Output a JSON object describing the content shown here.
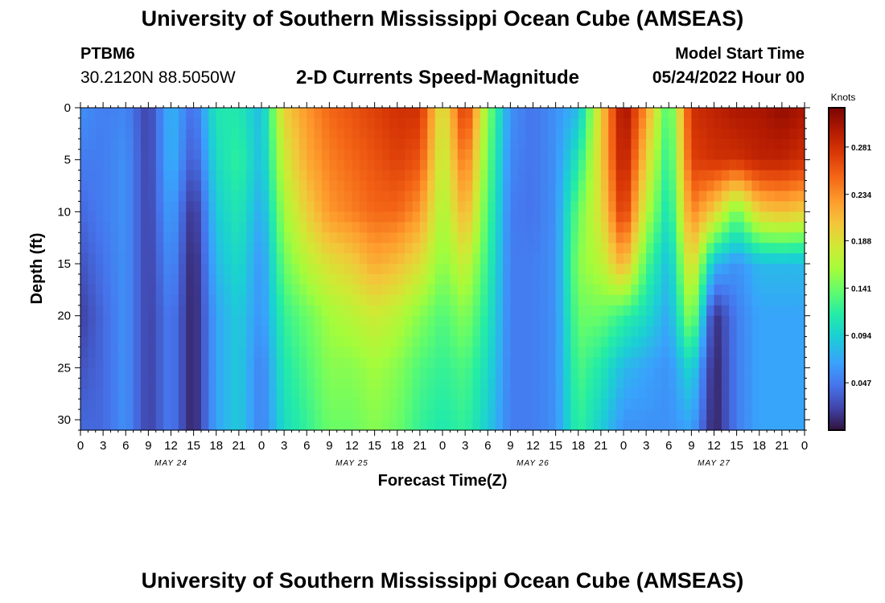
{
  "page": {
    "title": "University of Southern Mississippi Ocean Cube (AMSEAS)",
    "title_repeat": "University of Southern Mississippi Ocean Cube (AMSEAS)",
    "station": "PTBM6",
    "coordinates": "30.2120N  88.5050W",
    "subtitle": "2-D Currents Speed-Magnitude",
    "model_start_label": "Model Start Time",
    "model_start_value": "05/24/2022 Hour 00"
  },
  "chart_data": {
    "type": "heatmap",
    "title": "2-D Currents Speed-Magnitude",
    "xlabel": "Forecast Time(Z)",
    "ylabel": "Depth (ft)",
    "x_range_hours": [
      0,
      96
    ],
    "y_range_ft": [
      0,
      31
    ],
    "x_tick_labels": [
      "0",
      "3",
      "6",
      "9",
      "12",
      "15",
      "18",
      "21",
      "0",
      "3",
      "6",
      "9",
      "12",
      "15",
      "18",
      "21",
      "0",
      "3",
      "6",
      "9",
      "12",
      "15",
      "18",
      "21",
      "0",
      "3",
      "6",
      "9",
      "12",
      "15",
      "18",
      "21",
      "0"
    ],
    "y_tick_labels": [
      "0",
      "5",
      "10",
      "15",
      "20",
      "25",
      "30"
    ],
    "y_ticks": [
      0,
      5,
      10,
      15,
      20,
      25,
      30
    ],
    "day_labels": [
      {
        "label": "MAY 24",
        "hour": 12
      },
      {
        "label": "MAY 25",
        "hour": 36
      },
      {
        "label": "MAY 26",
        "hour": 60
      },
      {
        "label": "MAY 27",
        "hour": 84
      }
    ],
    "colorbar": {
      "units": "Knots",
      "min": 0.0,
      "max": 0.32,
      "tick_values": [
        0.047,
        0.094,
        0.141,
        0.188,
        0.234,
        0.281
      ],
      "tick_labels": [
        "0.047",
        "0.094",
        "0.141",
        "0.188",
        "0.234",
        "0.281"
      ]
    },
    "depths_ft": [
      0,
      5,
      10,
      15,
      20,
      25,
      31
    ],
    "hours": [
      0,
      3,
      6,
      9,
      12,
      15,
      18,
      21,
      24,
      27,
      30,
      33,
      36,
      39,
      42,
      45,
      48,
      51,
      54,
      57,
      60,
      63,
      66,
      69,
      72,
      75,
      78,
      81,
      84,
      87,
      90,
      93,
      96
    ],
    "speed_knots": [
      [
        0.06,
        0.05,
        0.055,
        0.02,
        0.08,
        0.04,
        0.11,
        0.11,
        0.08,
        0.2,
        0.23,
        0.25,
        0.26,
        0.27,
        0.28,
        0.28,
        0.18,
        0.28,
        0.15,
        0.06,
        0.045,
        0.06,
        0.08,
        0.2,
        0.31,
        0.23,
        0.12,
        0.28,
        0.29,
        0.3,
        0.3,
        0.31,
        0.3
      ],
      [
        0.05,
        0.05,
        0.06,
        0.02,
        0.08,
        0.03,
        0.1,
        0.12,
        0.08,
        0.18,
        0.22,
        0.24,
        0.25,
        0.26,
        0.27,
        0.26,
        0.17,
        0.25,
        0.14,
        0.055,
        0.045,
        0.06,
        0.11,
        0.2,
        0.3,
        0.2,
        0.11,
        0.27,
        0.28,
        0.28,
        0.29,
        0.29,
        0.28
      ],
      [
        0.04,
        0.05,
        0.06,
        0.02,
        0.07,
        0.01,
        0.09,
        0.11,
        0.07,
        0.16,
        0.2,
        0.23,
        0.24,
        0.25,
        0.25,
        0.23,
        0.16,
        0.22,
        0.13,
        0.05,
        0.045,
        0.06,
        0.14,
        0.19,
        0.28,
        0.17,
        0.1,
        0.24,
        0.2,
        0.14,
        0.2,
        0.21,
        0.2
      ],
      [
        0.03,
        0.045,
        0.06,
        0.02,
        0.06,
        0.005,
        0.08,
        0.1,
        0.06,
        0.14,
        0.17,
        0.19,
        0.2,
        0.22,
        0.21,
        0.19,
        0.15,
        0.18,
        0.12,
        0.05,
        0.05,
        0.06,
        0.15,
        0.17,
        0.22,
        0.13,
        0.08,
        0.2,
        0.08,
        0.06,
        0.08,
        0.08,
        0.08
      ],
      [
        0.02,
        0.04,
        0.06,
        0.02,
        0.05,
        0.005,
        0.07,
        0.09,
        0.06,
        0.12,
        0.14,
        0.16,
        0.17,
        0.18,
        0.17,
        0.15,
        0.13,
        0.15,
        0.11,
        0.05,
        0.05,
        0.06,
        0.14,
        0.14,
        0.12,
        0.1,
        0.07,
        0.16,
        0.01,
        0.05,
        0.07,
        0.07,
        0.07
      ],
      [
        0.03,
        0.04,
        0.06,
        0.02,
        0.05,
        0.005,
        0.07,
        0.09,
        0.05,
        0.11,
        0.13,
        0.15,
        0.15,
        0.16,
        0.15,
        0.13,
        0.12,
        0.13,
        0.1,
        0.05,
        0.05,
        0.06,
        0.13,
        0.11,
        0.08,
        0.07,
        0.06,
        0.1,
        0.005,
        0.05,
        0.07,
        0.07,
        0.07
      ],
      [
        0.04,
        0.04,
        0.06,
        0.02,
        0.05,
        0.005,
        0.07,
        0.09,
        0.05,
        0.1,
        0.12,
        0.14,
        0.14,
        0.15,
        0.14,
        0.12,
        0.11,
        0.12,
        0.09,
        0.05,
        0.05,
        0.06,
        0.12,
        0.09,
        0.06,
        0.06,
        0.06,
        0.07,
        0.005,
        0.05,
        0.07,
        0.07,
        0.07
      ]
    ]
  }
}
